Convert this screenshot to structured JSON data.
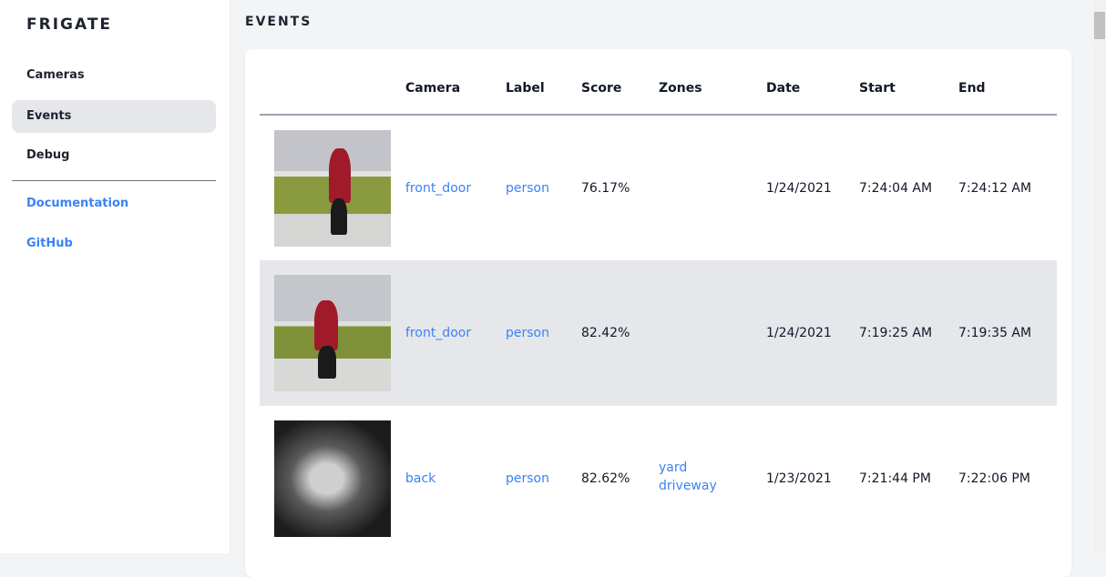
{
  "sidebar": {
    "brand": "FRIGATE",
    "items": [
      {
        "label": "Cameras"
      },
      {
        "label": "Events"
      },
      {
        "label": "Debug"
      }
    ],
    "links": [
      {
        "label": "Documentation"
      },
      {
        "label": "GitHub"
      }
    ]
  },
  "page": {
    "title": "EVENTS"
  },
  "table": {
    "headers": [
      "",
      "Camera",
      "Label",
      "Score",
      "Zones",
      "Date",
      "Start",
      "End"
    ],
    "rows": [
      {
        "camera": "front_door",
        "label": "person",
        "score": "76.17%",
        "zones": [
          "",
          ""
        ],
        "date": "1/24/2021",
        "start": "7:24:04 AM",
        "end": "7:24:12 AM"
      },
      {
        "camera": "front_door",
        "label": "person",
        "score": "82.42%",
        "zones": [
          "",
          ""
        ],
        "date": "1/24/2021",
        "start": "7:19:25 AM",
        "end": "7:19:35 AM"
      },
      {
        "camera": "back",
        "label": "person",
        "score": "82.62%",
        "zones": [
          "yard",
          "driveway"
        ],
        "date": "1/23/2021",
        "start": "7:21:44 PM",
        "end": "7:22:06 PM"
      }
    ]
  },
  "colors": {
    "accent": "#3b82f6",
    "active_bg": "#e5e7eb",
    "page_bg": "#f3f4f6"
  }
}
